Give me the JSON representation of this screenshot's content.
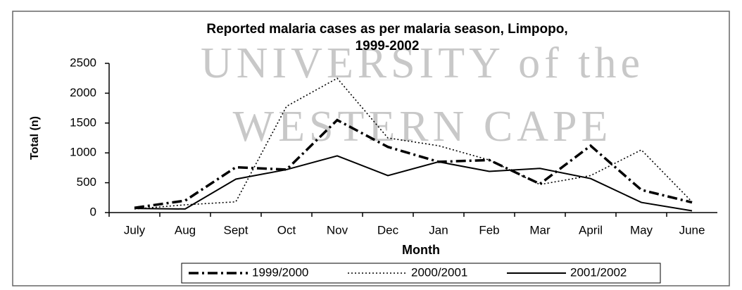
{
  "watermark": [
    "UNIVERSITY of the",
    "WESTERN CAPE"
  ],
  "chart_data": {
    "type": "line",
    "title": [
      "Reported malaria cases as per malaria season, Limpopo,",
      "1999-2002"
    ],
    "x_label": "Month",
    "y_label": "Total (n)",
    "categories": [
      "July",
      "Aug",
      "Sept",
      "Oct",
      "Nov",
      "Dec",
      "Jan",
      "Feb",
      "Mar",
      "April",
      "May",
      "June"
    ],
    "series": [
      {
        "name": "1999/2000",
        "color": "#000000",
        "dash": "dashdot",
        "values": [
          80,
          200,
          760,
          720,
          1550,
          1100,
          850,
          880,
          480,
          1120,
          380,
          170
        ]
      },
      {
        "name": "2000/2001",
        "color": "#000000",
        "dash": "dotted",
        "values": [
          60,
          130,
          180,
          1780,
          2250,
          1250,
          1120,
          880,
          470,
          620,
          1050,
          180
        ]
      },
      {
        "name": "2001/2002",
        "color": "#000000",
        "dash": "solid",
        "values": [
          70,
          60,
          560,
          720,
          950,
          620,
          850,
          690,
          740,
          570,
          170,
          30
        ]
      }
    ],
    "ylim": [
      0,
      2500
    ],
    "yticks": [
      0,
      500,
      1000,
      1500,
      2000,
      2500
    ],
    "grid": false,
    "legend": "bottom"
  }
}
